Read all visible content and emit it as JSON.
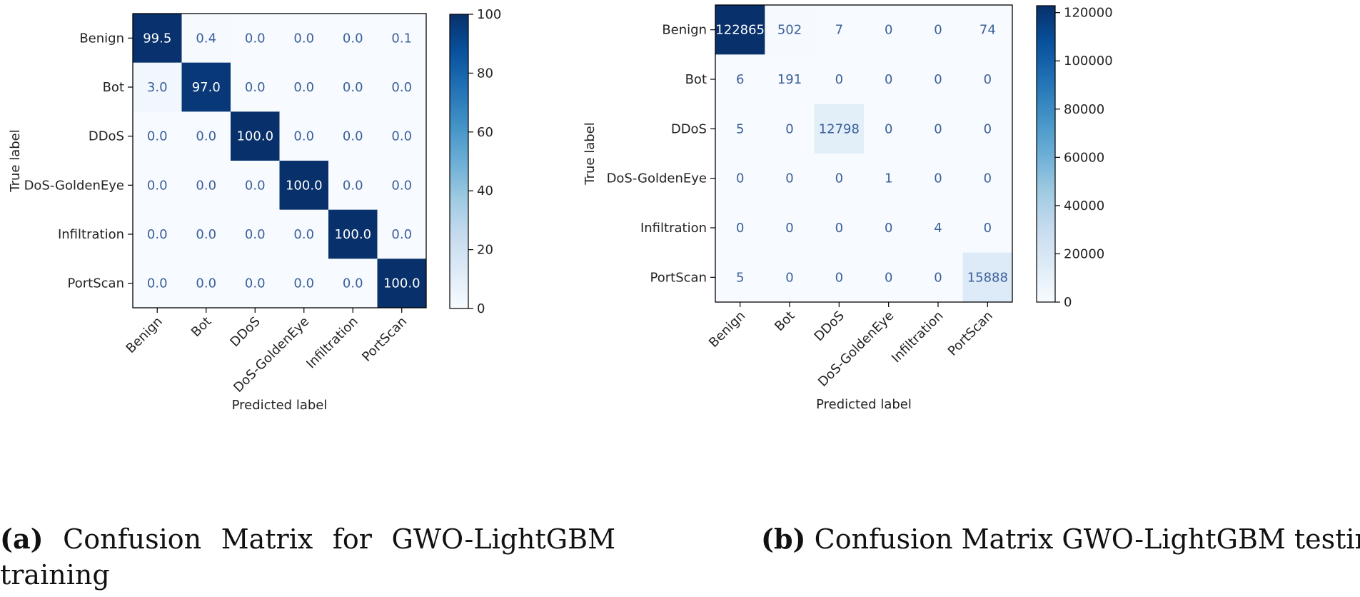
{
  "chart_data": [
    {
      "type": "heatmap",
      "id": "a",
      "xlabel": "Predicted label",
      "ylabel": "True label",
      "categories": [
        "Benign",
        "Bot",
        "DDoS",
        "DoS-GoldenEye",
        "Infiltration",
        "PortScan"
      ],
      "value_labels": [
        [
          "99.5",
          "0.4",
          "0.0",
          "0.0",
          "0.0",
          "0.1"
        ],
        [
          "3.0",
          "97.0",
          "0.0",
          "0.0",
          "0.0",
          "0.0"
        ],
        [
          "0.0",
          "0.0",
          "100.0",
          "0.0",
          "0.0",
          "0.0"
        ],
        [
          "0.0",
          "0.0",
          "0.0",
          "100.0",
          "0.0",
          "0.0"
        ],
        [
          "0.0",
          "0.0",
          "0.0",
          "0.0",
          "100.0",
          "0.0"
        ],
        [
          "0.0",
          "0.0",
          "0.0",
          "0.0",
          "0.0",
          "100.0"
        ]
      ],
      "matrix": [
        [
          99.5,
          0.4,
          0.0,
          0.0,
          0.0,
          0.1
        ],
        [
          3.0,
          97.0,
          0.0,
          0.0,
          0.0,
          0.0
        ],
        [
          0.0,
          0.0,
          100.0,
          0.0,
          0.0,
          0.0
        ],
        [
          0.0,
          0.0,
          0.0,
          100.0,
          0.0,
          0.0
        ],
        [
          0.0,
          0.0,
          0.0,
          0.0,
          100.0,
          0.0
        ],
        [
          0.0,
          0.0,
          0.0,
          0.0,
          0.0,
          100.0
        ]
      ],
      "colorbar": {
        "min": 0,
        "max": 100,
        "ticks": [
          "0",
          "20",
          "40",
          "60",
          "80",
          "100"
        ]
      },
      "colormap": "Blues"
    },
    {
      "type": "heatmap",
      "id": "b",
      "xlabel": "Predicted label",
      "ylabel": "True label",
      "categories": [
        "Benign",
        "Bot",
        "DDoS",
        "DoS-GoldenEye",
        "Infiltration",
        "PortScan"
      ],
      "value_labels": [
        [
          "122865",
          "502",
          "7",
          "0",
          "0",
          "74"
        ],
        [
          "6",
          "191",
          "0",
          "0",
          "0",
          "0"
        ],
        [
          "5",
          "0",
          "12798",
          "0",
          "0",
          "0"
        ],
        [
          "0",
          "0",
          "0",
          "1",
          "0",
          "0"
        ],
        [
          "0",
          "0",
          "0",
          "0",
          "4",
          "0"
        ],
        [
          "5",
          "0",
          "0",
          "0",
          "0",
          "15888"
        ]
      ],
      "matrix": [
        [
          122865,
          502,
          7,
          0,
          0,
          74
        ],
        [
          6,
          191,
          0,
          0,
          0,
          0
        ],
        [
          5,
          0,
          12798,
          0,
          0,
          0
        ],
        [
          0,
          0,
          0,
          1,
          0,
          0
        ],
        [
          0,
          0,
          0,
          0,
          4,
          0
        ],
        [
          5,
          0,
          0,
          0,
          0,
          15888
        ]
      ],
      "colorbar": {
        "min": 0,
        "max": 122865,
        "ticks": [
          "0",
          "20000",
          "40000",
          "60000",
          "80000",
          "100000",
          "120000"
        ]
      },
      "colormap": "Blues"
    }
  ],
  "captions": {
    "a": {
      "label": "(a)",
      "line1_words": [
        "Confusion",
        "Matrix",
        "for",
        "GWO-LightGBM"
      ],
      "line2": "training"
    },
    "b": {
      "label": "(b)",
      "text": "Confusion Matrix GWO-LightGBM testing"
    }
  }
}
